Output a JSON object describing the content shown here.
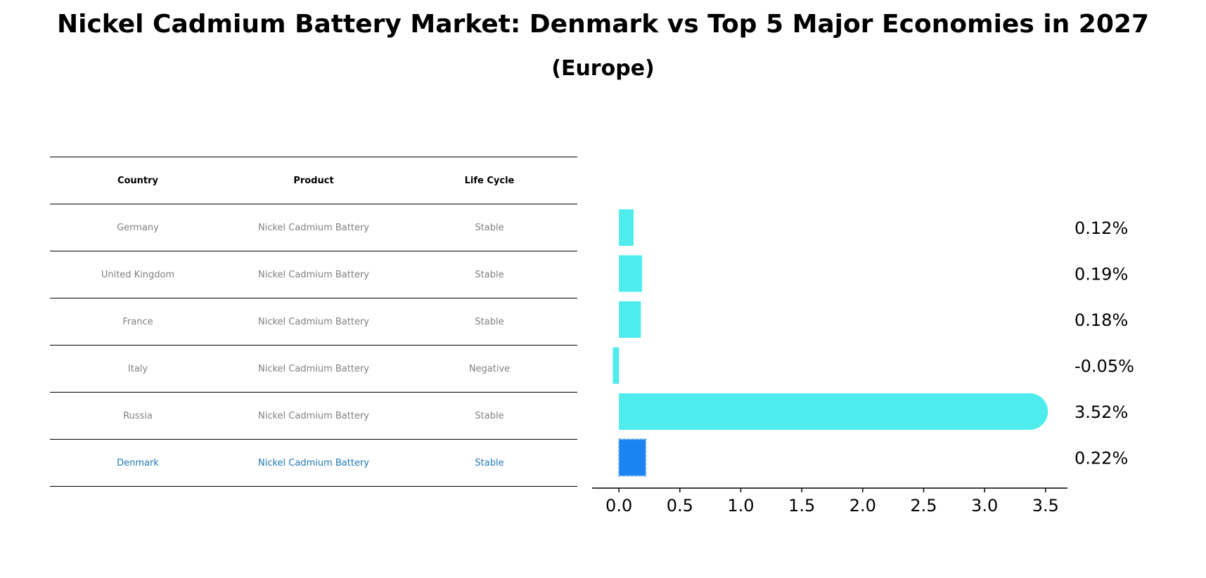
{
  "title": "Nickel Cadmium Battery Market: Denmark vs Top 5 Major Economies in 2027",
  "subtitle": "(Europe)",
  "table": {
    "headers": [
      "Country",
      "Product",
      "Life Cycle"
    ],
    "rows": [
      {
        "country": "Germany",
        "product": "Nickel Cadmium Battery",
        "life_cycle": "Stable"
      },
      {
        "country": "United Kingdom",
        "product": "Nickel Cadmium Battery",
        "life_cycle": "Stable"
      },
      {
        "country": "France",
        "product": "Nickel Cadmium Battery",
        "life_cycle": "Stable"
      },
      {
        "country": "Italy",
        "product": "Nickel Cadmium Battery",
        "life_cycle": "Negative"
      },
      {
        "country": "Russia",
        "product": "Nickel Cadmium Battery",
        "life_cycle": "Stable"
      },
      {
        "country": "Denmark",
        "product": "Nickel Cadmium Battery",
        "life_cycle": "Stable"
      }
    ]
  },
  "colors": {
    "bar": "#4EECEC",
    "highlight_bar": "#1A85F2",
    "highlight_text": "#1f77b4",
    "muted_text": "#808080"
  },
  "chart_data": {
    "type": "bar",
    "orientation": "horizontal",
    "categories": [
      "Germany",
      "United Kingdom",
      "France",
      "Italy",
      "Russia",
      "Denmark"
    ],
    "values": [
      0.12,
      0.19,
      0.18,
      -0.05,
      3.52,
      0.22
    ],
    "value_labels": [
      "0.12%",
      "0.19%",
      "0.18%",
      "-0.05%",
      "3.52%",
      "0.22%"
    ],
    "highlight": "Denmark",
    "xlim": [
      -0.22,
      3.68
    ],
    "xticks": [
      0.0,
      0.5,
      1.0,
      1.5,
      2.0,
      2.5,
      3.0,
      3.5
    ],
    "xtick_labels": [
      "0.0",
      "0.5",
      "1.0",
      "1.5",
      "2.0",
      "2.5",
      "3.0",
      "3.5"
    ],
    "grid": false,
    "xlabel": "",
    "ylabel": ""
  }
}
